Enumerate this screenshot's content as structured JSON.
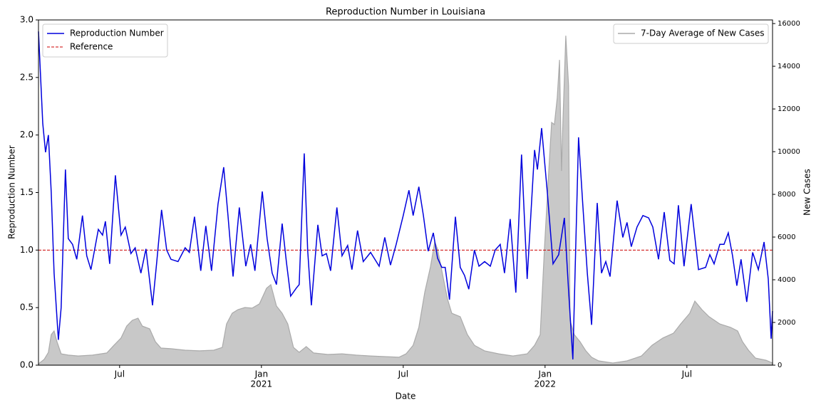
{
  "chart_data": {
    "type": "line",
    "title": "Reproduction Number in Louisiana",
    "xlabel": "Date",
    "ylabel": "Reproduction Number",
    "y2label": "New Cases",
    "xlim": [
      2020.214,
      2022.802
    ],
    "ylim": [
      0,
      3
    ],
    "y2lim": [
      0,
      16170
    ],
    "xticks": [
      {
        "value": 2020.5,
        "label": "Jul"
      },
      {
        "value": 2021,
        "label": "Jan"
      },
      {
        "value": 2021.5,
        "label": "Jul"
      },
      {
        "value": 2022,
        "label": "Jan"
      },
      {
        "value": 2022.5,
        "label": "Jul"
      }
    ],
    "xtick_years": [
      2021,
      2022
    ],
    "yticks": [
      {
        "value": 0,
        "label": "0.0"
      },
      0.5,
      {
        "value": 1,
        "label": "1.0"
      },
      1.5,
      {
        "value": 2,
        "label": "2.0"
      },
      2.5,
      {
        "value": 3,
        "label": "3.0"
      }
    ],
    "y2ticks": [
      0,
      2000,
      4000,
      6000,
      8000,
      10000,
      12000,
      14000,
      16000
    ],
    "legend": "upper left",
    "legend2": "upper right",
    "reference": {
      "name": "Reference",
      "value": 1,
      "color": "#cc0000"
    },
    "series": [
      {
        "name": "Reproduction Number",
        "color": "#0000dd",
        "axis": "y",
        "x": [
          2020.214,
          2020.229,
          2020.239,
          2020.249,
          2020.259,
          2020.269,
          2020.284,
          2020.294,
          2020.309,
          2020.319,
          2020.334,
          2020.349,
          2020.369,
          2020.384,
          2020.399,
          2020.425,
          2020.44,
          2020.45,
          2020.465,
          2020.485,
          2020.505,
          2020.52,
          2020.54,
          2020.555,
          2020.575,
          2020.593,
          2020.616,
          2020.631,
          2020.648,
          2020.666,
          2020.681,
          2020.706,
          2020.731,
          2020.746,
          2020.764,
          2020.786,
          2020.804,
          2020.824,
          2020.847,
          2020.867,
          2020.882,
          2020.9,
          2020.922,
          2020.945,
          2020.962,
          2020.977,
          2021.003,
          2021.02,
          2021.038,
          2021.053,
          2021.073,
          2021.088,
          2021.103,
          2021.123,
          2021.133,
          2021.151,
          2021.163,
          2021.176,
          2021.199,
          2021.214,
          2021.229,
          2021.244,
          2021.266,
          2021.284,
          2021.304,
          2021.319,
          2021.339,
          2021.359,
          2021.385,
          2021.405,
          2021.415,
          2021.435,
          2021.455,
          2021.475,
          2021.5,
          2021.52,
          2021.535,
          2021.555,
          2021.571,
          2021.588,
          2021.606,
          2021.621,
          2021.636,
          2021.648,
          2021.663,
          2021.684,
          2021.701,
          2021.716,
          2021.731,
          2021.751,
          2021.767,
          2021.787,
          2021.807,
          2021.824,
          2021.842,
          2021.857,
          2021.877,
          2021.897,
          2021.917,
          2021.937,
          2021.963,
          2021.973,
          2021.988,
          2022.008,
          2022.028,
          2022.048,
          2022.068,
          2022.083,
          2022.098,
          2022.118,
          2022.133,
          2022.149,
          2022.164,
          2022.184,
          2022.199,
          2022.214,
          2022.229,
          2022.254,
          2022.274,
          2022.289,
          2022.304,
          2022.324,
          2022.345,
          2022.365,
          2022.38,
          2022.4,
          2022.42,
          2022.44,
          2022.455,
          2022.47,
          2022.49,
          2022.515,
          2022.541,
          2022.566,
          2022.581,
          2022.596,
          2022.616,
          2022.631,
          2022.646,
          2022.661,
          2022.676,
          2022.691,
          2022.711,
          2022.732,
          2022.752,
          2022.772,
          2022.787,
          2022.797,
          2022.802
        ],
        "values": [
          2.9,
          2.1,
          1.85,
          2.0,
          1.5,
          0.8,
          0.22,
          0.5,
          1.7,
          1.1,
          1.05,
          0.92,
          1.3,
          0.95,
          0.83,
          1.18,
          1.13,
          1.25,
          0.88,
          1.65,
          1.13,
          1.2,
          0.97,
          1.02,
          0.8,
          1.01,
          0.52,
          0.9,
          1.35,
          1.0,
          0.92,
          0.9,
          1.02,
          0.98,
          1.29,
          0.82,
          1.21,
          0.82,
          1.4,
          1.72,
          1.3,
          0.77,
          1.37,
          0.86,
          1.05,
          0.82,
          1.51,
          1.1,
          0.8,
          0.7,
          1.23,
          0.9,
          0.6,
          0.67,
          0.7,
          1.84,
          1.0,
          0.52,
          1.22,
          0.95,
          0.97,
          0.82,
          1.37,
          0.95,
          1.04,
          0.83,
          1.17,
          0.9,
          0.98,
          0.9,
          0.86,
          1.11,
          0.87,
          1.05,
          1.3,
          1.52,
          1.3,
          1.55,
          1.3,
          0.99,
          1.15,
          0.93,
          0.85,
          0.85,
          0.57,
          1.29,
          0.85,
          0.78,
          0.66,
          1.0,
          0.86,
          0.9,
          0.86,
          1.0,
          1.05,
          0.8,
          1.27,
          0.63,
          1.83,
          0.75,
          1.87,
          1.7,
          2.06,
          1.5,
          0.88,
          0.96,
          1.28,
          0.65,
          0.05,
          1.98,
          1.4,
          0.8,
          0.35,
          1.41,
          0.8,
          0.9,
          0.77,
          1.43,
          1.11,
          1.24,
          1.03,
          1.2,
          1.3,
          1.28,
          1.2,
          0.92,
          1.33,
          0.91,
          0.88,
          1.39,
          0.86,
          1.4,
          0.83,
          0.85,
          0.96,
          0.88,
          1.05,
          1.05,
          1.15,
          0.95,
          0.69,
          0.92,
          0.55,
          0.98,
          0.83,
          1.07,
          0.75,
          0.23,
          0.47
        ]
      },
      {
        "name": "7-Day Average of New Cases",
        "color": "#aaaaaa",
        "fill": "#c8c8c8",
        "axis": "y2",
        "x": [
          2020.214,
          2020.234,
          2020.249,
          2020.259,
          2020.269,
          2020.279,
          2020.294,
          2020.319,
          2020.354,
          2020.405,
          2020.455,
          2020.48,
          2020.505,
          2020.525,
          2020.545,
          2020.565,
          2020.58,
          2020.606,
          2020.626,
          2020.646,
          2020.681,
          2020.731,
          2020.781,
          2020.832,
          2020.862,
          2020.877,
          2020.897,
          2020.917,
          2020.942,
          2020.967,
          2020.993,
          2021.018,
          2021.033,
          2021.053,
          2021.073,
          2021.093,
          2021.113,
          2021.133,
          2021.158,
          2021.184,
          2021.234,
          2021.284,
          2021.334,
          2021.385,
          2021.435,
          2021.485,
          2021.51,
          2021.535,
          2021.555,
          2021.576,
          2021.596,
          2021.611,
          2021.621,
          2021.636,
          2021.656,
          2021.671,
          2021.701,
          2021.726,
          2021.751,
          2021.787,
          2021.837,
          2021.887,
          2021.937,
          2021.963,
          2021.983,
          2021.998,
          2022.013,
          2022.023,
          2022.033,
          2022.043,
          2022.051,
          2022.058,
          2022.063,
          2022.073,
          2022.083,
          2022.088,
          2022.103,
          2022.123,
          2022.144,
          2022.164,
          2022.189,
          2022.239,
          2022.289,
          2022.34,
          2022.377,
          2022.415,
          2022.453,
          2022.478,
          2022.51,
          2022.528,
          2022.553,
          2022.578,
          2022.616,
          2022.654,
          2022.679,
          2022.696,
          2022.717,
          2022.742,
          2022.779,
          2022.802
        ],
        "values": [
          60,
          270,
          600,
          1430,
          1600,
          1100,
          530,
          470,
          430,
          470,
          570,
          930,
          1270,
          1830,
          2100,
          2200,
          1830,
          1700,
          1100,
          800,
          770,
          700,
          670,
          700,
          830,
          1930,
          2430,
          2600,
          2700,
          2670,
          2870,
          3600,
          3770,
          2770,
          2430,
          1930,
          830,
          600,
          870,
          570,
          500,
          530,
          470,
          430,
          400,
          370,
          530,
          930,
          1770,
          3430,
          4600,
          5770,
          5430,
          4430,
          3100,
          2430,
          2270,
          1430,
          930,
          670,
          530,
          430,
          530,
          930,
          1430,
          5500,
          9100,
          11370,
          11270,
          12530,
          14300,
          9100,
          11430,
          15430,
          13100,
          2100,
          1430,
          1100,
          670,
          370,
          200,
          100,
          200,
          430,
          930,
          1270,
          1500,
          1930,
          2430,
          3000,
          2600,
          2270,
          1930,
          1770,
          1600,
          1100,
          700,
          330,
          230,
          100
        ]
      }
    ]
  }
}
